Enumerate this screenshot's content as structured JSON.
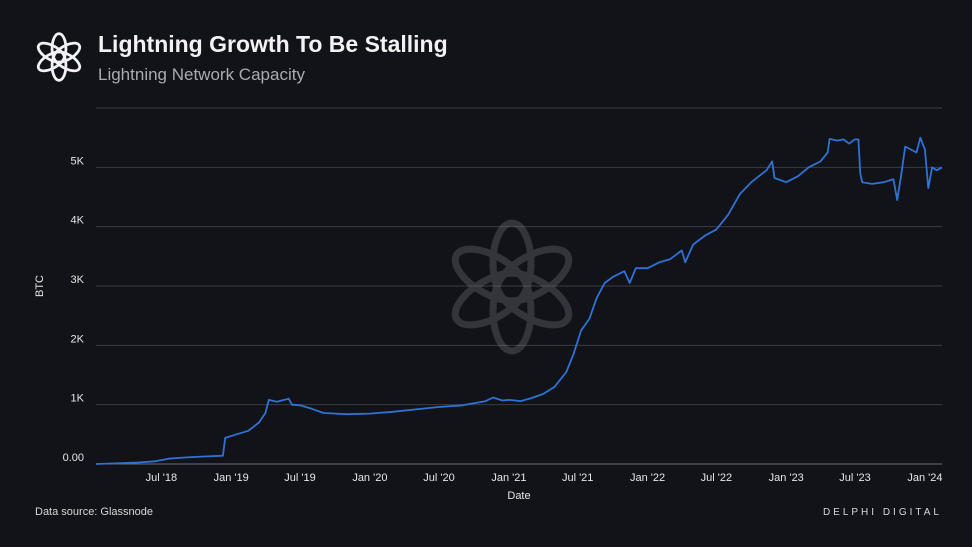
{
  "header": {
    "logo_icon": "delphi-flower-logo-icon",
    "title": "Lightning Growth To Be Stalling",
    "subtitle": "Lightning Network Capacity"
  },
  "footer": {
    "source": "Data source: Glassnode",
    "brand": "DELPHI DIGITAL"
  },
  "colors": {
    "background": "#121318",
    "line": "#2f72d6",
    "grid": "#3a3c44",
    "text": "#e6e6e8"
  },
  "chart_data": {
    "type": "line",
    "title": "Lightning Growth To Be Stalling",
    "subtitle": "Lightning Network Capacity",
    "xlabel": "Date",
    "ylabel": "BTC",
    "x_ticks": [
      {
        "label": "Jul '18",
        "date": "2018-07-01"
      },
      {
        "label": "Jan '19",
        "date": "2019-01-01"
      },
      {
        "label": "Jul '19",
        "date": "2019-07-01"
      },
      {
        "label": "Jan '20",
        "date": "2020-01-01"
      },
      {
        "label": "Jul '20",
        "date": "2020-07-01"
      },
      {
        "label": "Jan '21",
        "date": "2021-01-01"
      },
      {
        "label": "Jul '21",
        "date": "2021-07-01"
      },
      {
        "label": "Jan '22",
        "date": "2022-01-01"
      },
      {
        "label": "Jul '22",
        "date": "2022-07-01"
      },
      {
        "label": "Jan '23",
        "date": "2023-01-01"
      },
      {
        "label": "Jul '23",
        "date": "2023-07-01"
      },
      {
        "label": "Jan '24",
        "date": "2024-01-01"
      }
    ],
    "y_ticks": [
      {
        "label": "0.00",
        "value": 0
      },
      {
        "label": "1K",
        "value": 1000
      },
      {
        "label": "2K",
        "value": 2000
      },
      {
        "label": "3K",
        "value": 3000
      },
      {
        "label": "4K",
        "value": 4000
      },
      {
        "label": "5K",
        "value": 5000
      }
    ],
    "xlim": [
      "2018-01-10",
      "2024-02-15"
    ],
    "ylim": [
      0,
      6000
    ],
    "grid": "horizontal",
    "series": [
      {
        "color": "#2f72d6",
        "points": [
          [
            "2018-01-10",
            0
          ],
          [
            "2018-03-01",
            10
          ],
          [
            "2018-05-01",
            25
          ],
          [
            "2018-06-15",
            45
          ],
          [
            "2018-07-20",
            90
          ],
          [
            "2018-09-01",
            110
          ],
          [
            "2018-10-15",
            125
          ],
          [
            "2018-12-10",
            140
          ],
          [
            "2018-12-16",
            440
          ],
          [
            "2019-01-15",
            500
          ],
          [
            "2019-02-15",
            560
          ],
          [
            "2019-03-15",
            700
          ],
          [
            "2019-04-01",
            860
          ],
          [
            "2019-04-10",
            1080
          ],
          [
            "2019-05-01",
            1050
          ],
          [
            "2019-06-01",
            1100
          ],
          [
            "2019-06-10",
            1000
          ],
          [
            "2019-07-01",
            990
          ],
          [
            "2019-08-01",
            930
          ],
          [
            "2019-09-01",
            860
          ],
          [
            "2019-11-01",
            840
          ],
          [
            "2020-01-01",
            850
          ],
          [
            "2020-03-01",
            880
          ],
          [
            "2020-05-01",
            920
          ],
          [
            "2020-07-01",
            960
          ],
          [
            "2020-09-01",
            990
          ],
          [
            "2020-11-01",
            1060
          ],
          [
            "2020-11-20",
            1120
          ],
          [
            "2020-12-15",
            1070
          ],
          [
            "2021-01-01",
            1080
          ],
          [
            "2021-02-01",
            1060
          ],
          [
            "2021-03-01",
            1110
          ],
          [
            "2021-04-01",
            1180
          ],
          [
            "2021-05-01",
            1300
          ],
          [
            "2021-06-01",
            1550
          ],
          [
            "2021-06-20",
            1850
          ],
          [
            "2021-07-10",
            2250
          ],
          [
            "2021-08-01",
            2450
          ],
          [
            "2021-08-20",
            2800
          ],
          [
            "2021-09-10",
            3050
          ],
          [
            "2021-10-01",
            3150
          ],
          [
            "2021-11-01",
            3250
          ],
          [
            "2021-11-15",
            3050
          ],
          [
            "2021-12-01",
            3300
          ],
          [
            "2022-01-01",
            3300
          ],
          [
            "2022-02-01",
            3400
          ],
          [
            "2022-03-01",
            3450
          ],
          [
            "2022-04-01",
            3600
          ],
          [
            "2022-04-10",
            3400
          ],
          [
            "2022-05-01",
            3700
          ],
          [
            "2022-06-01",
            3850
          ],
          [
            "2022-07-01",
            3950
          ],
          [
            "2022-08-01",
            4200
          ],
          [
            "2022-09-01",
            4550
          ],
          [
            "2022-10-01",
            4750
          ],
          [
            "2022-11-10",
            4950
          ],
          [
            "2022-11-25",
            5100
          ],
          [
            "2022-12-01",
            4820
          ],
          [
            "2023-01-01",
            4750
          ],
          [
            "2023-02-01",
            4850
          ],
          [
            "2023-03-01",
            5000
          ],
          [
            "2023-04-01",
            5100
          ],
          [
            "2023-04-20",
            5250
          ],
          [
            "2023-04-25",
            5480
          ],
          [
            "2023-05-15",
            5450
          ],
          [
            "2023-06-01",
            5470
          ],
          [
            "2023-06-15",
            5400
          ],
          [
            "2023-07-01",
            5470
          ],
          [
            "2023-07-10",
            5470
          ],
          [
            "2023-07-15",
            4900
          ],
          [
            "2023-07-20",
            4750
          ],
          [
            "2023-08-15",
            4720
          ],
          [
            "2023-09-15",
            4750
          ],
          [
            "2023-10-10",
            4800
          ],
          [
            "2023-10-20",
            4450
          ],
          [
            "2023-10-30",
            4850
          ],
          [
            "2023-11-10",
            5350
          ],
          [
            "2023-11-25",
            5300
          ],
          [
            "2023-12-10",
            5250
          ],
          [
            "2023-12-20",
            5500
          ],
          [
            "2024-01-01",
            5300
          ],
          [
            "2024-01-10",
            4650
          ],
          [
            "2024-01-20",
            5000
          ],
          [
            "2024-02-01",
            4950
          ],
          [
            "2024-02-15",
            5000
          ]
        ]
      }
    ]
  }
}
